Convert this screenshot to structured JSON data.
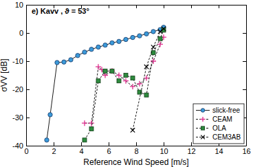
{
  "chart_data": {
    "type": "line",
    "title": "e) Kavv , ϑ = 53°",
    "x_label": "Reference Wind Speed [m/s]",
    "y_label": "σVV [dB]",
    "xlim": [
      0,
      16
    ],
    "xticks": [
      0,
      2,
      4,
      6,
      8,
      10,
      12,
      14,
      16
    ],
    "ylim": [
      -40,
      10
    ],
    "yticks": [
      -40,
      -30,
      -20,
      -10,
      0,
      10
    ],
    "grid": false,
    "legend": "lower right",
    "series": [
      {
        "name": "slick-free",
        "color": "#3b9ad9",
        "marker": "circle",
        "line_style": "solid",
        "x": [
          1.5,
          1.75,
          2.25,
          2.75,
          3.25,
          3.75,
          4.25,
          4.75,
          5.25,
          5.75,
          6.25,
          6.75,
          7.25,
          7.75,
          8.25,
          8.75,
          9.25,
          9.75,
          10
        ],
        "values": [
          -38,
          -29,
          -10.5,
          -10.3,
          -9.5,
          -8,
          -6.8,
          -5.8,
          -5,
          -4.3,
          -3.5,
          -3,
          -2.3,
          -1.6,
          -1,
          -0.3,
          0.5,
          1.2,
          2
        ]
      },
      {
        "name": "CEAM",
        "color": "#e0308f",
        "marker": "plus",
        "line_style": "dashed",
        "x": [
          4.25,
          4.75,
          5.25,
          5.5,
          5.75,
          6.25,
          6.75,
          7.25,
          7.75,
          8.25,
          8.75,
          9.25,
          9.75,
          10
        ],
        "values": [
          -32,
          -32,
          -12,
          -13,
          -15,
          -13.5,
          -15,
          -17,
          -19,
          -18,
          -16,
          -10,
          -4,
          -1.5
        ]
      },
      {
        "name": "OLA",
        "color": "#2e8b3e",
        "marker": "square",
        "line_style": "dashed",
        "x": [
          4.25,
          4.75,
          5.25,
          5.75,
          6.25,
          6.75,
          7.25,
          7.75,
          8.25,
          8.75,
          9.25,
          9.75,
          10
        ],
        "values": [
          -38,
          -34,
          -17,
          -13.5,
          -13.5,
          -17,
          -15,
          -16,
          -21,
          -22,
          -7,
          -2,
          1
        ]
      },
      {
        "name": "CEM3AB",
        "color": "#000000",
        "marker": "x",
        "line_style": "dashed",
        "x": [
          7.75,
          8.75,
          9.25,
          9.75,
          10
        ],
        "values": [
          -34.5,
          -12,
          -5,
          0.5,
          1.5
        ]
      }
    ]
  }
}
